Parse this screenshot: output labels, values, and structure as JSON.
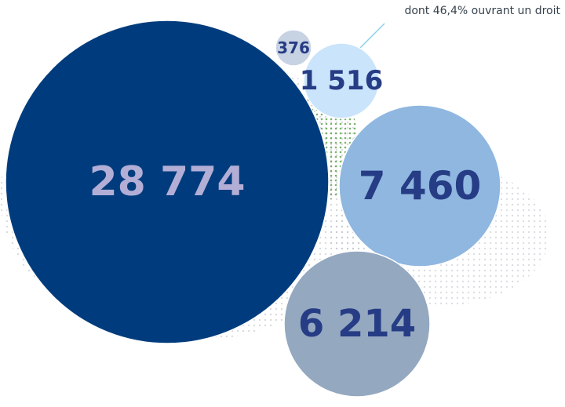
{
  "chart_data": {
    "type": "bubble",
    "annotation": "dont 46,4% ouvrant un droit",
    "bubbles": [
      {
        "label": "28 774",
        "value": 28774,
        "color": "#003c7d",
        "label_color": "#b3aed6"
      },
      {
        "label": "7 460",
        "value": 7460,
        "color": "#8fb7e0",
        "label_color": "#263c85"
      },
      {
        "label": "6 214",
        "value": 6214,
        "color": "#94a8c0",
        "label_color": "#263c85"
      },
      {
        "label": "1 516",
        "value": 1516,
        "color": "#c9e4fb",
        "label_color": "#263c85"
      },
      {
        "label": "376",
        "value": 376,
        "color": "#c7d2e2",
        "label_color": "#263c85"
      }
    ],
    "annotation_line_color": "#8ccfe8",
    "texture_color": "#2f9b3a"
  }
}
